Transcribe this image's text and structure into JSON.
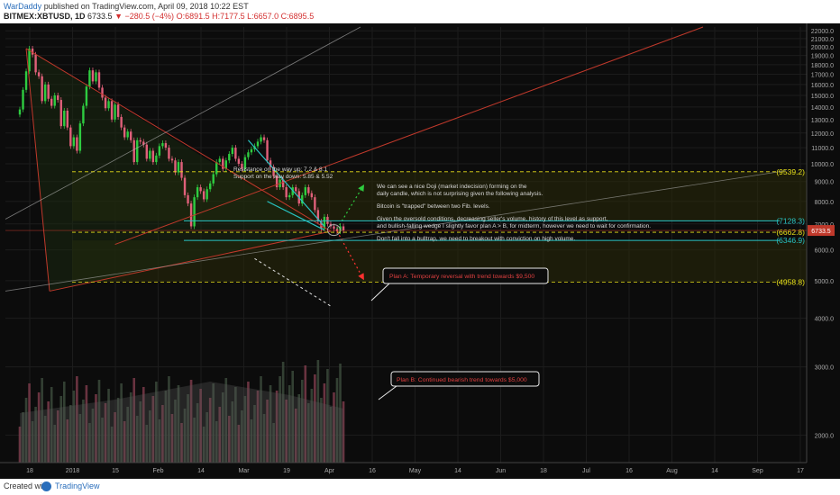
{
  "header": {
    "author": "WarDaddy",
    "published": "published on TradingView.com, April 09, 2018 10:22 EST",
    "symbol": "BITMEX:XBTUSD, 1D",
    "last": "6733.5",
    "change": "−280.5 (−4%)",
    "ohlc": "O:6891.5 H:7177.5 L:6657.0 C:6895.5"
  },
  "footer": {
    "created_with": "Created with",
    "brand": "TradingView"
  },
  "chart_data": {
    "type": "candlestick",
    "title": "BITMEX:XBTUSD, 1D",
    "y_ticks": [
      2000,
      3000,
      4000,
      5000,
      6000,
      7000,
      8000,
      9000,
      10000,
      11000,
      12000,
      13000,
      14000,
      15000,
      16000,
      17000,
      18000,
      19000,
      20000,
      21000,
      22000
    ],
    "ylim": [
      1700,
      22500
    ],
    "x_ticks": [
      "18",
      "2018",
      "15",
      "Feb",
      "14",
      "Mar",
      "19",
      "Apr",
      "16",
      "May",
      "14",
      "Jun",
      "18",
      "Jul",
      "16",
      "Aug",
      "14",
      "Sep",
      "17"
    ],
    "price_path": [
      13800,
      15500,
      17300,
      19800,
      19100,
      17200,
      16800,
      14500,
      16000,
      14700,
      14100,
      15000,
      14600,
      12500,
      13700,
      12400,
      11100,
      11700,
      10800,
      12700,
      14100,
      15800,
      17400,
      16300,
      17200,
      15700,
      14800,
      13900,
      14500,
      13000,
      14200,
      13200,
      12400,
      11700,
      12100,
      11500,
      10100,
      11500,
      11400,
      11200,
      10300,
      10800,
      10100,
      10500,
      11100,
      11300,
      11000,
      10300,
      10200,
      9500,
      10100,
      9200,
      8300,
      7900,
      6900,
      8200,
      8700,
      8500,
      8100,
      8600,
      8900,
      9400,
      10100,
      10300,
      9700,
      10200,
      10600,
      11000,
      10300,
      10000,
      9700,
      10400,
      10700,
      10900,
      11100,
      11400,
      11700,
      11500,
      10200,
      9800,
      9300,
      8700,
      9100,
      8700,
      8200,
      8300,
      8700,
      8500,
      7900,
      8300,
      8700,
      8400,
      8200,
      7600,
      7100,
      6800,
      7300,
      7000,
      6900,
      6800,
      6700,
      6900,
      6733
    ],
    "levels": [
      {
        "value": 9539.2,
        "label": "(9539.2)",
        "color": "#e8e01a"
      },
      {
        "value": 7128.3,
        "label": "(7128.3)",
        "color": "#28c4c4"
      },
      {
        "value": 6662.8,
        "label": "(6662.8)",
        "color": "#e8e01a"
      },
      {
        "value": 6346.9,
        "label": "(6346.9)",
        "color": "#28c4c4"
      },
      {
        "value": 4958.8,
        "label": "(4958.8)",
        "color": "#e8e01a"
      }
    ],
    "current_price": 6733.5,
    "annotations": [
      {
        "text": "Resistance on the way up: 7.2 & 8.1"
      },
      {
        "text": "Support on the way down: 5.85 & 5.52"
      },
      {
        "text": "We can see a nice Doji (market indecision) forming on the"
      },
      {
        "text": "daily candle, which is not surprising given the following analysis."
      },
      {
        "text": "Bitcoin is \"trapped\" between two Fib. levels."
      },
      {
        "text": "Given the oversold conditions, decreasing seller's volume, history of this level as support,"
      },
      {
        "text": "and bullish-falling wedge I slightly favor plan A > B, for midterm, however we need to wait for confirmation."
      },
      {
        "text": "Don't fall into a bulltrap, we need to breakout with conviction on high volume."
      }
    ],
    "plan_a": "Plan A: Temporary reversal with trend towards $9,500",
    "plan_b": "Plan B: Continued bearish trend towards $5,000",
    "colors": {
      "up": "#2ecc40",
      "down": "#e0607a",
      "bg": "#0c0c0c",
      "grid": "#1c1c1c"
    },
    "grid": true
  }
}
